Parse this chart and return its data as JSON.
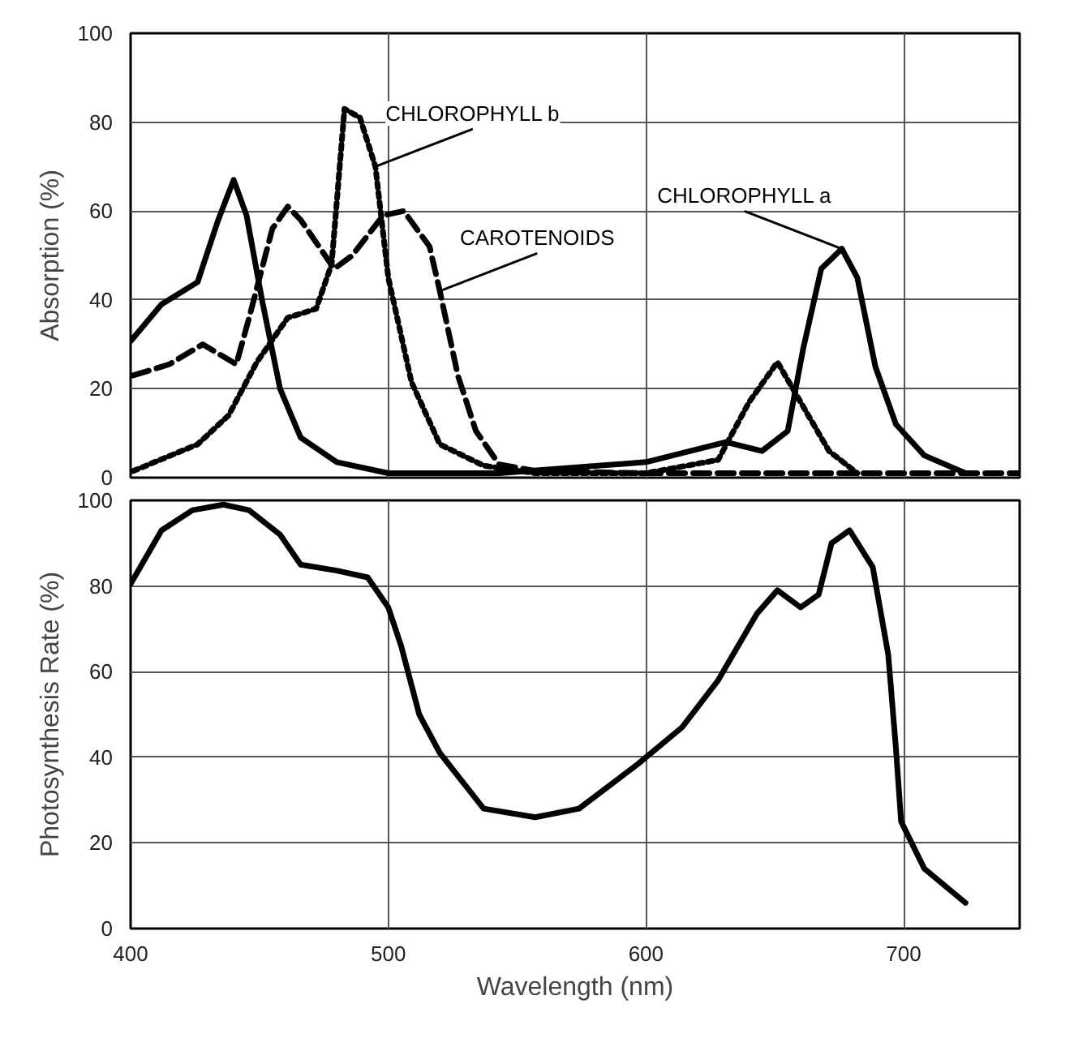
{
  "chart_data": [
    {
      "type": "line",
      "ylabel": "Absorption (%)",
      "xlim": [
        400,
        745
      ],
      "xticks": [
        400,
        500,
        600,
        700
      ],
      "ylim": [
        0,
        100
      ],
      "yticks": [
        0,
        20,
        40,
        60,
        80,
        100
      ],
      "grid": true,
      "tick_labels": "y",
      "series": [
        {
          "name": "CHLOROPHYLL a",
          "color": "#000000",
          "line_style": "solid",
          "x": [
            400,
            412,
            426,
            434,
            440,
            445,
            451,
            458,
            466,
            480,
            500,
            543,
            600,
            631,
            645,
            655,
            661,
            668,
            676,
            682,
            689,
            697,
            708,
            724
          ],
          "values": [
            30.7,
            39,
            44,
            58,
            67,
            59,
            40,
            20,
            9,
            3.5,
            1,
            1,
            3.5,
            8,
            6,
            10.5,
            29,
            47,
            51.5,
            45,
            25,
            12,
            5,
            1
          ]
        },
        {
          "name": "CHLOROPHYLL b",
          "color": "#000000",
          "line_style": "dotted",
          "x": [
            401,
            426,
            438,
            449,
            461,
            472,
            478,
            483,
            489,
            495,
            500,
            509,
            520,
            537,
            557,
            600,
            628,
            640,
            651,
            660,
            671,
            682
          ],
          "values": [
            1.5,
            7.5,
            14,
            26,
            36,
            38,
            48,
            83,
            81,
            70,
            45,
            21.5,
            7.5,
            2.7,
            1,
            1,
            4,
            17,
            26,
            17,
            6,
            1
          ]
        },
        {
          "name": "CAROTENOIDS",
          "color": "#000000",
          "line_style": "dashed",
          "x": [
            401,
            415,
            428,
            441,
            446,
            455,
            461,
            466,
            479,
            486,
            498,
            506,
            516,
            520,
            527,
            534,
            543,
            557,
            600,
            745
          ],
          "values": [
            23,
            25.5,
            30,
            25.5,
            36,
            56,
            61,
            58,
            47,
            50,
            59,
            60,
            52,
            42,
            23,
            10.5,
            3,
            1.5,
            1,
            1
          ]
        }
      ]
    },
    {
      "type": "line",
      "xlabel": "Wavelength (nm)",
      "ylabel": "Photosynthesis Rate (%)",
      "xlim": [
        400,
        745
      ],
      "xticks": [
        400,
        500,
        600,
        700
      ],
      "ylim": [
        0,
        100
      ],
      "yticks": [
        0,
        20,
        40,
        60,
        80,
        100
      ],
      "grid": true,
      "series": [
        {
          "color": "#000000",
          "line_style": "solid",
          "x": [
            400,
            412,
            424,
            436,
            446,
            458,
            466,
            480,
            492,
            500,
            505,
            512,
            520,
            537,
            557,
            574,
            597,
            614,
            628,
            643,
            651,
            660,
            667,
            672,
            679,
            688,
            694,
            697,
            699,
            708,
            724
          ],
          "values": [
            80.5,
            93,
            97.7,
            99,
            97.7,
            92,
            85,
            83.6,
            82,
            75,
            66,
            50,
            41,
            28,
            26,
            28,
            38.5,
            47,
            58,
            73.5,
            79,
            75,
            78,
            90,
            93,
            84.4,
            64,
            42,
            25,
            14,
            6
          ]
        }
      ]
    }
  ]
}
